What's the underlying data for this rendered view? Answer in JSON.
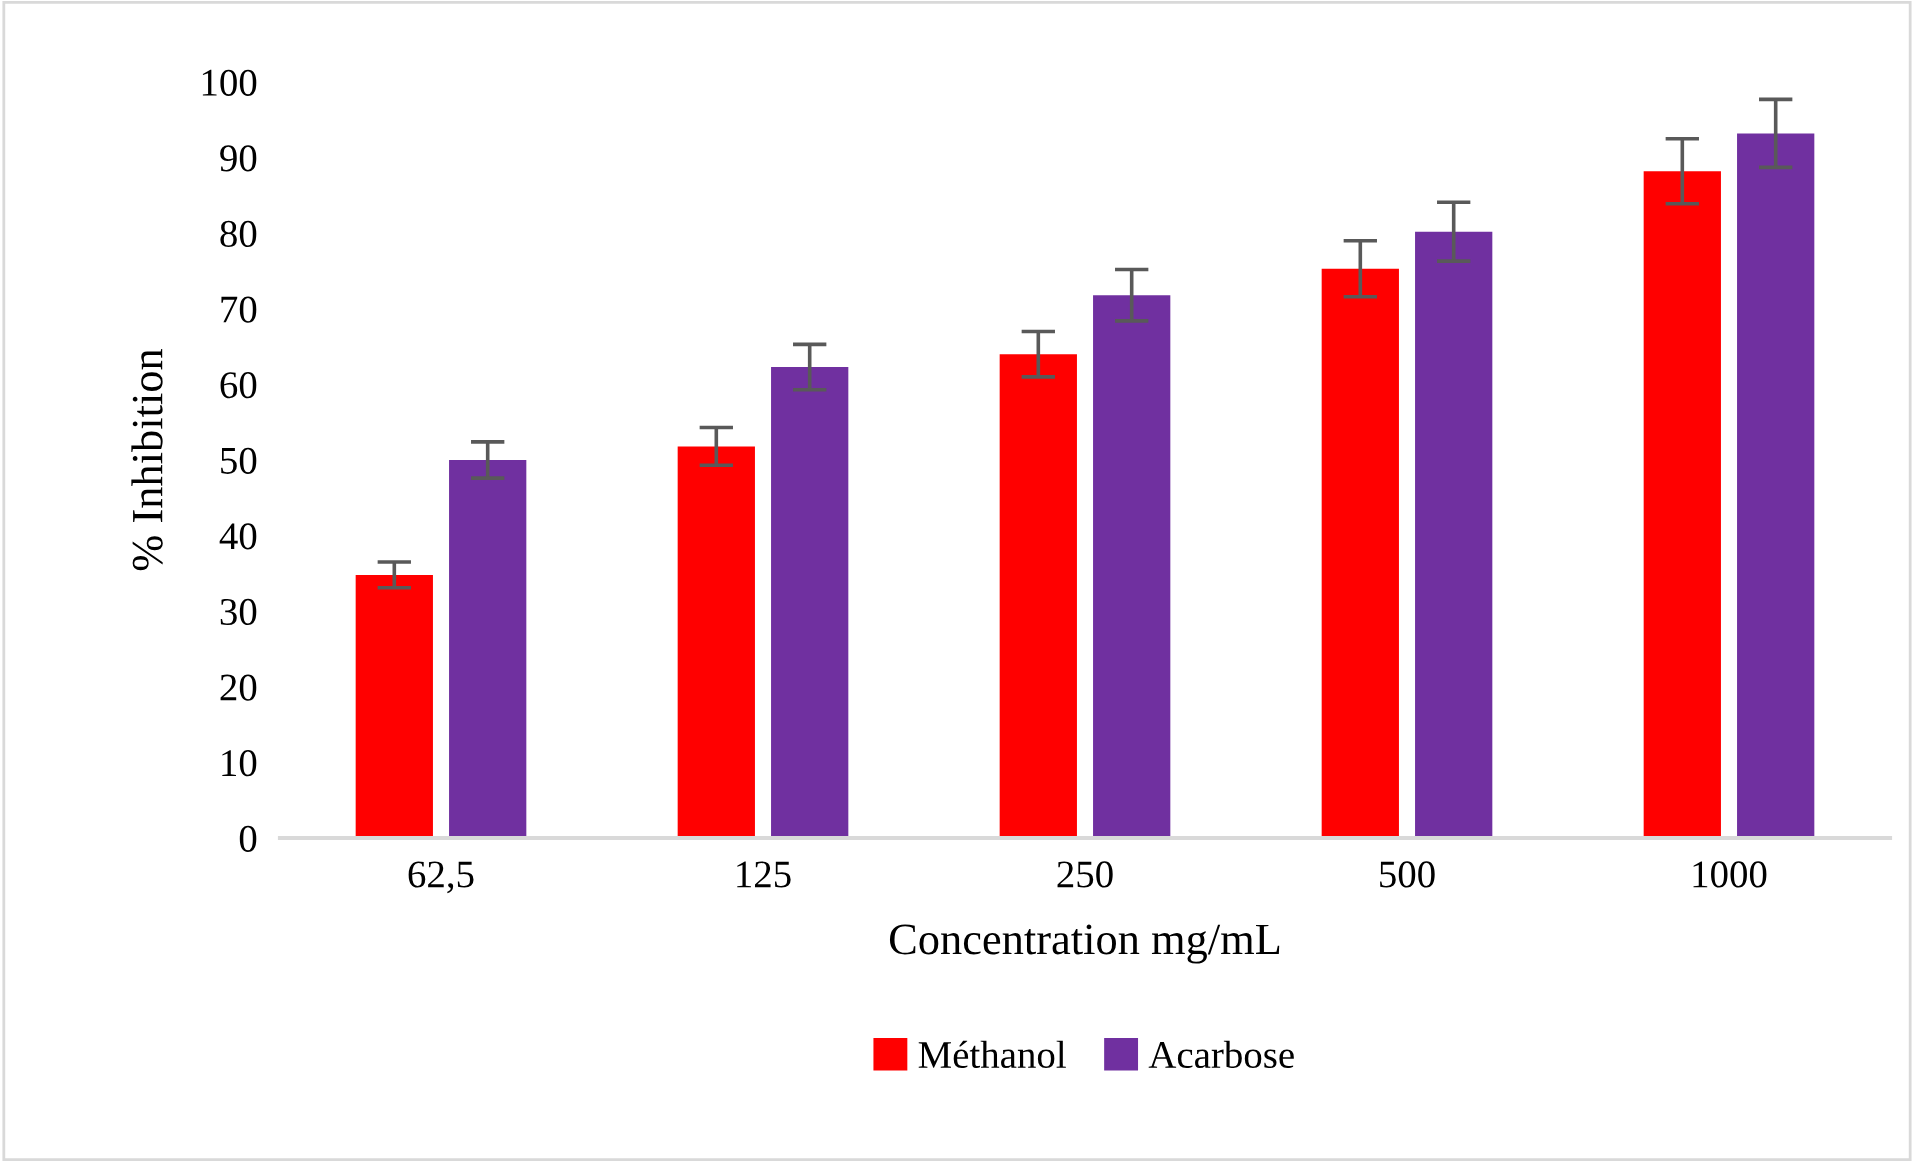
{
  "chart_data": {
    "type": "bar",
    "xlabel": "Concentration mg/mL",
    "ylabel": "% Inhibition",
    "categories": [
      "62,5",
      "125",
      "250",
      "500",
      "1000"
    ],
    "series": [
      {
        "name": "Méthanol",
        "color": "#ff0000",
        "values": [
          34.8,
          51.8,
          64,
          75.3,
          88.2
        ],
        "errors": [
          1.7,
          2.5,
          3,
          3.7,
          4.3
        ]
      },
      {
        "name": "Acarbose",
        "color": "#7030a0",
        "values": [
          50,
          62.3,
          71.8,
          80.2,
          93.2
        ],
        "errors": [
          2.4,
          3,
          3.4,
          3.9,
          4.5
        ]
      }
    ],
    "ylim": [
      0,
      100
    ],
    "yticks": [
      0,
      10,
      20,
      30,
      40,
      50,
      60,
      70,
      80,
      90,
      100
    ],
    "grid": false,
    "legend": "bottom"
  }
}
